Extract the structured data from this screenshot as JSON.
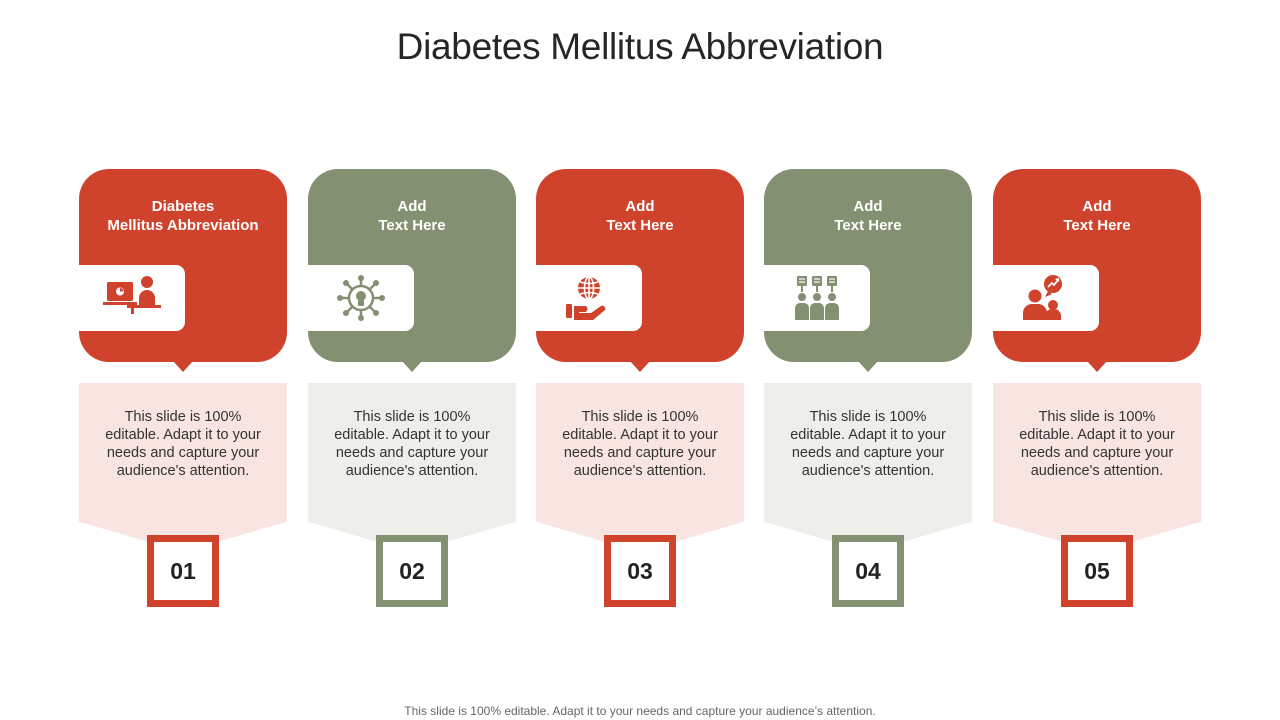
{
  "slide": {
    "title": "Diabetes Mellitus Abbreviation",
    "footer": "This slide is 100% editable. Adapt it to your needs and capture your audience’s attention."
  },
  "colors": {
    "red": "#cf432c",
    "green": "#839071",
    "red_light": "#f8e4e1",
    "green_light": "#eeefea"
  },
  "cards": [
    {
      "number": "01",
      "heading": "Diabetes\nMellitus  Abbreviation",
      "icon": "computer-user-icon",
      "body": "This slide is 100% editable. Adapt it to your needs and capture your audience's attention.",
      "theme": "red"
    },
    {
      "number": "02",
      "heading": "Add\nText Here",
      "icon": "gear-lightbulb-icon",
      "body": "This slide is 100% editable. Adapt it to your needs and capture your audience's attention.",
      "theme": "green"
    },
    {
      "number": "03",
      "heading": "Add\nText Here",
      "icon": "globe-hand-icon",
      "body": "This slide is 100% editable. Adapt it to your needs and capture your audience's attention.",
      "theme": "red"
    },
    {
      "number": "04",
      "heading": "Add\nText Here",
      "icon": "team-voting-icon",
      "body": "This slide is 100% editable. Adapt it to your needs and capture your audience's attention.",
      "theme": "green"
    },
    {
      "number": "05",
      "heading": "Add\nText Here",
      "icon": "people-growth-chat-icon",
      "body": "This slide is 100% editable. Adapt it to your needs and capture your audience's attention.",
      "theme": "red"
    }
  ]
}
